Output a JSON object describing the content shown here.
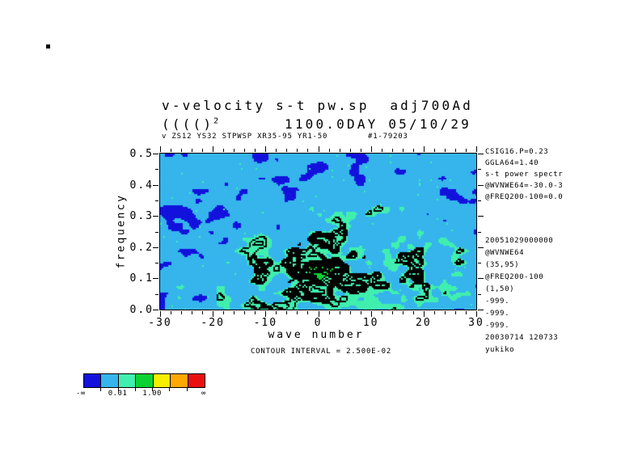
{
  "header": {
    "title": "v-velocity s-t pw.sp  adj700Ad",
    "units_base": "(((()",
    "units_exp": "2",
    "datetime": "1100.0DAY 05/10/29",
    "meta": "v ZS12 YS32 STPWSP XR35-95 YR1-50",
    "run_id": "#1-79203"
  },
  "chart_data": {
    "type": "contour",
    "title": "v-velocity s-t pw.sp  adj700Ad",
    "subtitle": "1100.0DAY 05/10/29",
    "xlabel": "wave number",
    "ylabel": "frequency",
    "xlim": [
      -30,
      30
    ],
    "ylim": [
      0.0,
      0.5
    ],
    "x_ticks": [
      -30,
      -20,
      -10,
      0,
      10,
      20,
      30
    ],
    "x_tick_labels": [
      "-30",
      "-20",
      "-10",
      "0",
      "10",
      "20",
      "30"
    ],
    "x_minor_step": 2,
    "y_ticks": [
      0.0,
      0.1,
      0.2,
      0.3,
      0.4,
      0.5
    ],
    "y_tick_labels": [
      "0.0",
      "0.1",
      "0.2",
      "0.3",
      "0.4",
      "0.5"
    ],
    "y_minor_step": 0.05,
    "grid": false,
    "contour_note": "CONTOUR INTERVAL = 2.500E-02",
    "contour_interval": 0.025,
    "colorbar": {
      "colors": [
        "#1212dc",
        "#35b5ec",
        "#40efae",
        "#0bd232",
        "#f8ee00",
        "#ffa800",
        "#ea1010"
      ],
      "labels": [
        "-∞",
        "0.01",
        "1.00",
        "∞"
      ],
      "labeled_boundaries": [
        0,
        2,
        4,
        7
      ],
      "scale": "log"
    },
    "field_summary": "s-t power spectrum of v-velocity: shaded cyan background (0.01-1) with scattered dark-blue low-power patches near the edges and high frequencies, aquamarine/green higher-power patches and dense black contour lines (interval 2.5E-2) concentrated around wave numbers -15..+15 at frequencies 0.0-0.3, small black maxima blobs near wave number 0, frequency 0.05-0.25",
    "render": {
      "seed": 20051029,
      "cell": 2,
      "thresholds": {
        "low": 0.26,
        "mid": 0.53,
        "green": 0.86,
        "black": 0.95
      },
      "contour_start": 0.6,
      "contour_step": 0.033,
      "contour_count": 11,
      "palette": {
        "low": "#1212dc",
        "bg": "#35b5ec",
        "mid": "#40efae",
        "high": "#0bd232",
        "line": "#000000"
      }
    }
  },
  "annotations": {
    "block1": [
      "CSIG16.P=0.23",
      "GGLA64=1.40",
      "s-t power spectr",
      "@WVNWE64=-30.0-3",
      "@FREQ200-100=0.0"
    ],
    "block2": [
      "20051029000000",
      "@WVNWE64",
      "(35,95)",
      "@FREQ200-100",
      "(1,50)",
      "-999.",
      "-999.",
      "-999.",
      "20030714 120733",
      "yukiko"
    ]
  }
}
